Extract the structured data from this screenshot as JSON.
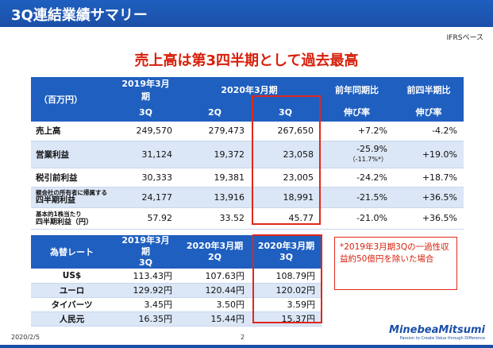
{
  "header": {
    "title": "3Q連結業績サマリー",
    "standard": "IFRSベース"
  },
  "headline": "売上高は第3四半期として過去最高",
  "main_table": {
    "unit_label": "（百万円）",
    "col_2019_period": "2019年3月期",
    "col_2020_period": "2020年3月期",
    "col_2019_3q": "3Q",
    "col_2020_2q": "2Q",
    "col_2020_3q": "3Q",
    "col_yoy_l1": "前年同期比",
    "col_yoy_l2": "伸び率",
    "col_qoq_l1": "前四半期比",
    "col_qoq_l2": "伸び率",
    "rows": [
      {
        "label": "売上高",
        "v2019_3q": "249,570",
        "v2020_2q": "279,473",
        "v2020_3q": "267,650",
        "yoy": "+7.2%",
        "yoy_note": "",
        "qoq": "-4.2%"
      },
      {
        "label": "営業利益",
        "v2019_3q": "31,124",
        "v2020_2q": "19,372",
        "v2020_3q": "23,058",
        "yoy": "-25.9%",
        "yoy_note": "（-11.7%*）",
        "qoq": "+19.0%"
      },
      {
        "label": "税引前利益",
        "v2019_3q": "30,333",
        "v2020_2q": "19,381",
        "v2020_3q": "23,005",
        "yoy": "-24.2%",
        "yoy_note": "",
        "qoq": "+18.7%"
      },
      {
        "label_l1": "親会社の所有者に帰属する",
        "label_l2": "四半期利益",
        "v2019_3q": "24,177",
        "v2020_2q": "13,916",
        "v2020_3q": "18,991",
        "yoy": "-21.5%",
        "yoy_note": "",
        "qoq": "+36.5%"
      },
      {
        "label_l1": "基本的1株当たり",
        "label_l2": "四半期利益（円）",
        "v2019_3q": "57.92",
        "v2020_2q": "33.52",
        "v2020_3q": "45.77",
        "yoy": "-21.0%",
        "yoy_note": "",
        "qoq": "+36.5%"
      }
    ]
  },
  "fx_table": {
    "label": "為替レート",
    "col1_l1": "2019年3月期",
    "col1_l2": "3Q",
    "col2_l1": "2020年3月期",
    "col2_l2": "2Q",
    "col3_l1": "2020年3月期",
    "col3_l2": "3Q",
    "rows": [
      {
        "currency": "US$",
        "c1": "113.43円",
        "c2": "107.63円",
        "c3": "108.79円"
      },
      {
        "currency": "ユーロ",
        "c1": "129.92円",
        "c2": "120.44円",
        "c3": "120.02円"
      },
      {
        "currency": "タイバーツ",
        "c1": "3.45円",
        "c2": "3.50円",
        "c3": "3.59円"
      },
      {
        "currency": "人民元",
        "c1": "16.35円",
        "c2": "15.44円",
        "c3": "15.37円"
      }
    ]
  },
  "note": "*2019年3月期3Qの一過性収益約50億円を除いた場合",
  "footer": {
    "date": "2020/2/5",
    "page": "2",
    "logo": "MinebeaMitsumi",
    "tagline": "Passion to Create Value through Difference"
  },
  "colors": {
    "brand_blue": "#1f5fbf",
    "accent_red": "#d7200b",
    "band_blue": "#dbe6f6"
  }
}
